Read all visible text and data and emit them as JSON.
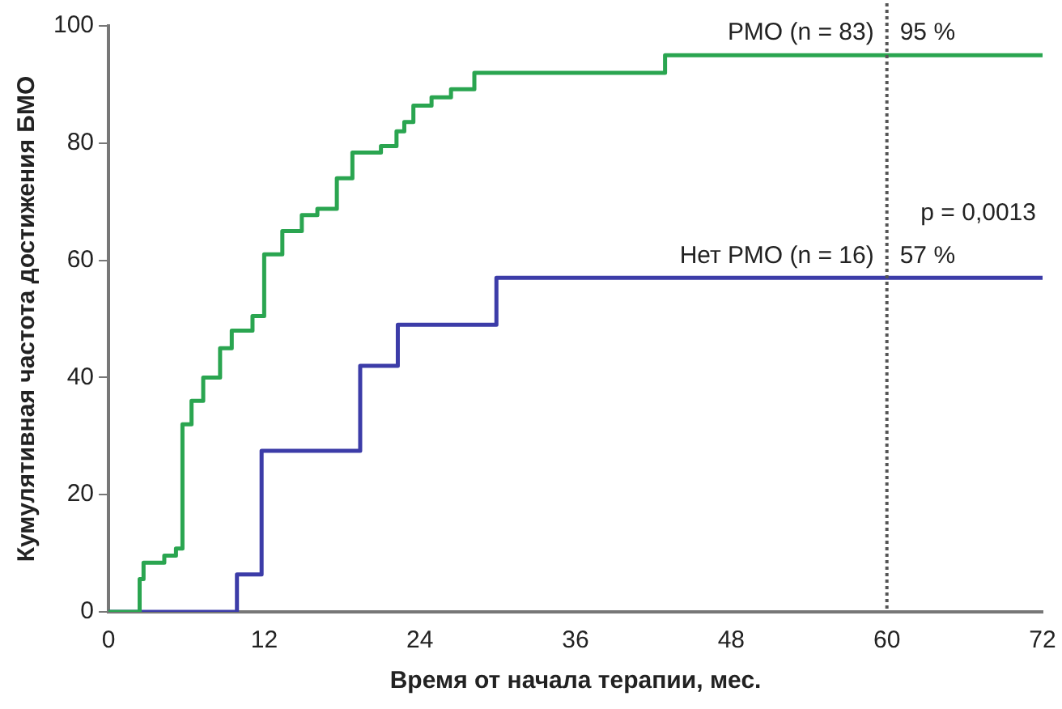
{
  "chart_data": {
    "type": "step",
    "xlabel": "Время от начала терапии, мес.",
    "ylabel": "Кумулятивная частота достижения БМО",
    "xlim": [
      0,
      72
    ],
    "xticks": [
      0,
      12,
      24,
      36,
      48,
      60,
      72
    ],
    "ylim": [
      0,
      100
    ],
    "yticks": [
      0,
      20,
      40,
      60,
      80,
      100
    ],
    "grid": false,
    "legend": false,
    "marker": "none",
    "line_style": "solid",
    "series": [
      {
        "name": "РМО (n = 83)",
        "color": "#2aa550",
        "x": [
          0,
          2.4,
          2.7,
          3.4,
          4.3,
          5.2,
          5.7,
          6.4,
          7.3,
          8.6,
          9.5,
          11.1,
          12,
          13.4,
          14.9,
          16.1,
          17.6,
          18.8,
          21,
          22.2,
          22.8,
          23.5,
          24.9,
          26.4,
          28.2,
          42.9,
          72
        ],
        "values": [
          0,
          5.6,
          8.4,
          8.4,
          9.6,
          10.8,
          32,
          36,
          40,
          45,
          48,
          50.5,
          61,
          65,
          67.7,
          68.8,
          74,
          78.4,
          79.5,
          82,
          83.6,
          86.4,
          87.8,
          89.2,
          92,
          95,
          95
        ]
      },
      {
        "name": "Нет РМО (n = 16)",
        "color": "#3c3ca8",
        "x": [
          0,
          9.9,
          11.8,
          19.4,
          22.3,
          29.9,
          72
        ],
        "values": [
          0,
          6.4,
          27.5,
          42,
          49,
          57,
          57
        ]
      }
    ],
    "ref_lines": [
      {
        "axis": "x",
        "value": 60,
        "color": "#555555",
        "line_style": "dotted"
      }
    ],
    "annotations": [
      {
        "text": "95 %",
        "x": 60,
        "y": 95
      },
      {
        "text": "57 %",
        "x": 60,
        "y": 57
      },
      "p = 0,0013"
    ]
  }
}
